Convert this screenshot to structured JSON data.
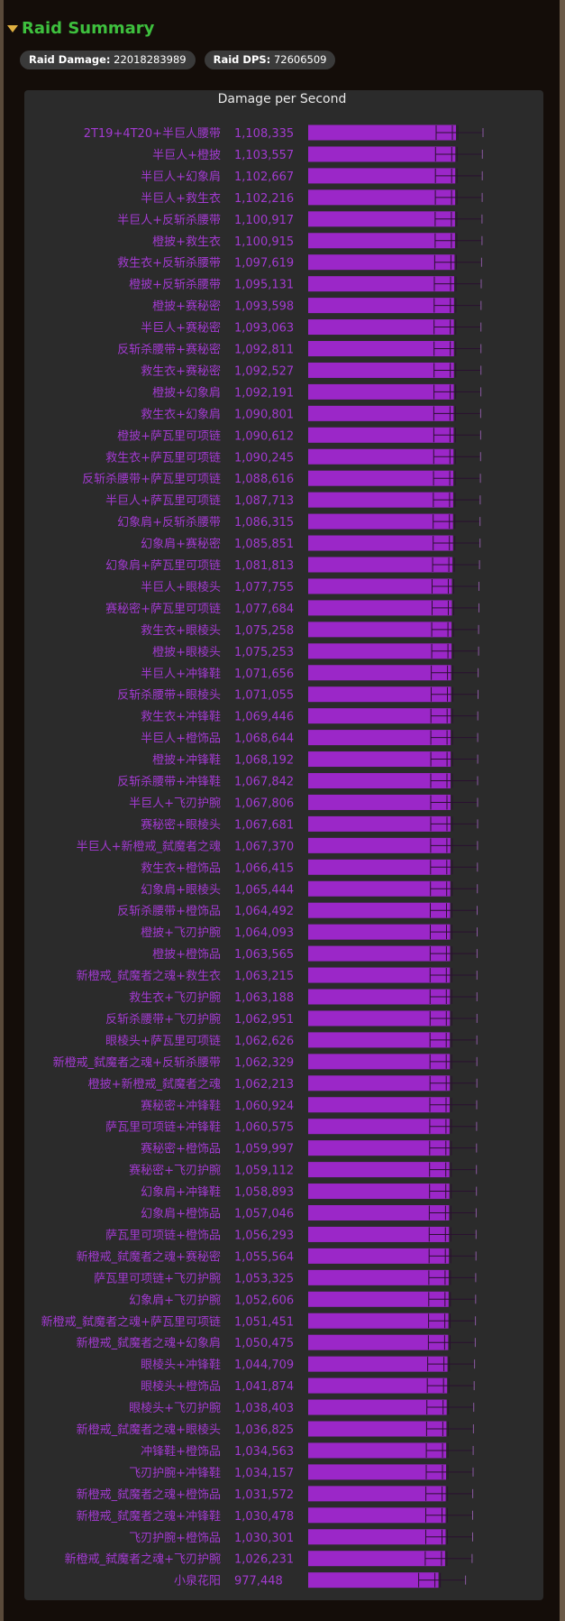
{
  "section": {
    "title": "Raid Summary",
    "raid_damage_label": "Raid Damage:",
    "raid_damage_value": "22018283989",
    "raid_dps_label": "Raid DPS:",
    "raid_dps_value": "72606509"
  },
  "colors": {
    "bar": "#9b27c8",
    "label": "#a23ad0",
    "title": "#3ec03e",
    "panel": "#2b2b2b"
  },
  "chart_data": {
    "type": "bar",
    "orientation": "horizontal",
    "title": "Damage per Second",
    "xlabel": "",
    "ylabel": "",
    "grid": false,
    "error_bars": true,
    "categories": [
      "2T19+4T20+半巨人腰带",
      "半巨人+橙披",
      "半巨人+幻象肩",
      "半巨人+救生衣",
      "半巨人+反斩杀腰带",
      "橙披+救生衣",
      "救生衣+反斩杀腰带",
      "橙披+反斩杀腰带",
      "橙披+赛秘密",
      "半巨人+赛秘密",
      "反斩杀腰带+赛秘密",
      "救生衣+赛秘密",
      "橙披+幻象肩",
      "救生衣+幻象肩",
      "橙披+萨瓦里可项链",
      "救生衣+萨瓦里可项链",
      "反斩杀腰带+萨瓦里可项链",
      "半巨人+萨瓦里可项链",
      "幻象肩+反斩杀腰带",
      "幻象肩+赛秘密",
      "幻象肩+萨瓦里可项链",
      "半巨人+眼棱头",
      "赛秘密+萨瓦里可项链",
      "救生衣+眼棱头",
      "橙披+眼棱头",
      "半巨人+冲锋鞋",
      "反斩杀腰带+眼棱头",
      "救生衣+冲锋鞋",
      "半巨人+橙饰品",
      "橙披+冲锋鞋",
      "反斩杀腰带+冲锋鞋",
      "半巨人+飞刃护腕",
      "赛秘密+眼棱头",
      "半巨人+新橙戒_弑魔者之魂",
      "救生衣+橙饰品",
      "幻象肩+眼棱头",
      "反斩杀腰带+橙饰品",
      "橙披+飞刃护腕",
      "橙披+橙饰品",
      "新橙戒_弑魔者之魂+救生衣",
      "救生衣+飞刃护腕",
      "反斩杀腰带+飞刃护腕",
      "眼棱头+萨瓦里可项链",
      "新橙戒_弑魔者之魂+反斩杀腰带",
      "橙披+新橙戒_弑魔者之魂",
      "赛秘密+冲锋鞋",
      "萨瓦里可项链+冲锋鞋",
      "赛秘密+橙饰品",
      "赛秘密+飞刃护腕",
      "幻象肩+冲锋鞋",
      "幻象肩+橙饰品",
      "萨瓦里可项链+橙饰品",
      "新橙戒_弑魔者之魂+赛秘密",
      "萨瓦里可项链+飞刃护腕",
      "幻象肩+飞刃护腕",
      "新橙戒_弑魔者之魂+萨瓦里可项链",
      "新橙戒_弑魔者之魂+幻象肩",
      "眼棱头+冲锋鞋",
      "眼棱头+橙饰品",
      "眼棱头+飞刃护腕",
      "新橙戒_弑魔者之魂+眼棱头",
      "冲锋鞋+橙饰品",
      "飞刃护腕+冲锋鞋",
      "新橙戒_弑魔者之魂+橙饰品",
      "新橙戒_弑魔者之魂+冲锋鞋",
      "飞刃护腕+橙饰品",
      "新橙戒_弑魔者之魂+飞刃护腕",
      "小泉花阳"
    ],
    "values": [
      1108335,
      1103557,
      1102667,
      1102216,
      1100917,
      1100915,
      1097619,
      1095131,
      1093598,
      1093063,
      1092811,
      1092527,
      1092191,
      1090801,
      1090612,
      1090245,
      1088616,
      1087713,
      1086315,
      1085851,
      1081813,
      1077755,
      1077684,
      1075258,
      1075253,
      1071656,
      1071055,
      1069446,
      1068644,
      1068192,
      1067842,
      1067806,
      1067681,
      1067370,
      1066415,
      1065444,
      1064492,
      1064093,
      1063565,
      1063215,
      1063188,
      1062951,
      1062626,
      1062329,
      1062213,
      1060924,
      1060575,
      1059997,
      1059112,
      1058893,
      1057046,
      1056293,
      1055564,
      1053325,
      1052606,
      1051451,
      1050475,
      1044709,
      1041874,
      1038403,
      1036825,
      1034563,
      1034157,
      1031572,
      1030478,
      1030301,
      1026231,
      977448
    ],
    "labels": [
      "1,108,335",
      "1,103,557",
      "1,102,667",
      "1,102,216",
      "1,100,917",
      "1,100,915",
      "1,097,619",
      "1,095,131",
      "1,093,598",
      "1,093,063",
      "1,092,811",
      "1,092,527",
      "1,092,191",
      "1,090,801",
      "1,090,612",
      "1,090,245",
      "1,088,616",
      "1,087,713",
      "1,086,315",
      "1,085,851",
      "1,081,813",
      "1,077,755",
      "1,077,684",
      "1,075,258",
      "1,075,253",
      "1,071,656",
      "1,071,055",
      "1,069,446",
      "1,068,644",
      "1,068,192",
      "1,067,842",
      "1,067,806",
      "1,067,681",
      "1,067,370",
      "1,066,415",
      "1,065,444",
      "1,064,492",
      "1,064,093",
      "1,063,565",
      "1,063,215",
      "1,063,188",
      "1,062,951",
      "1,062,626",
      "1,062,329",
      "1,062,213",
      "1,060,924",
      "1,060,575",
      "1,059,997",
      "1,059,112",
      "1,058,893",
      "1,057,046",
      "1,056,293",
      "1,055,564",
      "1,053,325",
      "1,052,606",
      "1,051,451",
      "1,050,475",
      "1,044,709",
      "1,041,874",
      "1,038,403",
      "1,036,825",
      "1,034,563",
      "1,034,157",
      "1,031,572",
      "1,030,478",
      "1,030,301",
      "1,026,231",
      "977,448"
    ]
  }
}
